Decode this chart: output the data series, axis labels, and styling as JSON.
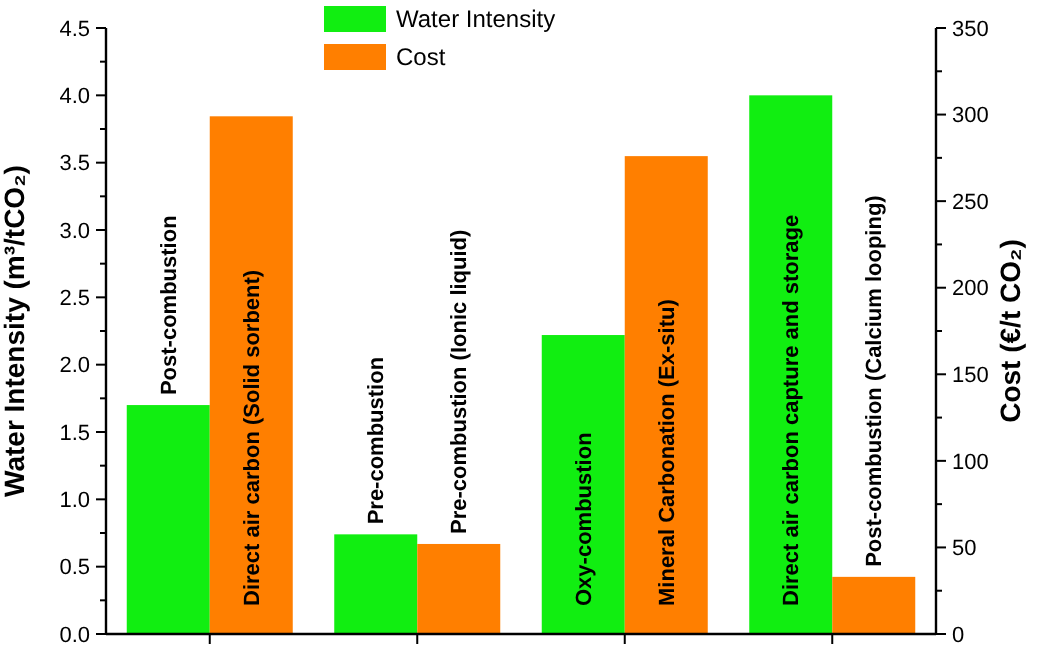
{
  "chart_data": {
    "type": "bar",
    "xlabel": null,
    "ylabel": "Water Intensity (m³/tCO₂)",
    "y2label": "Cost (€/t CO₂)",
    "categories": [
      null,
      null,
      null,
      null
    ],
    "series": [
      {
        "name": "Water Intensity",
        "color": "#11ee11",
        "values": [
          1.7,
          0.74,
          2.22,
          4.0
        ],
        "value_labels": [
          "Post-combustion",
          "Pre-combustion",
          "Oxy-combustion",
          "Direct air carbon capture and storage"
        ]
      },
      {
        "name": "Cost",
        "color": "#ff7f00",
        "values": [
          299,
          52,
          276,
          33
        ],
        "axis": "y2",
        "value_labels": [
          "Direct air carbon (Solid sorbent)",
          "Pre-combustion (Ionic liquid)",
          "Mineral Carbonation (Ex-situ)",
          "Post-combustion (Calcium looping)"
        ]
      }
    ],
    "ylim": [
      0,
      4.5
    ],
    "yticks": [
      {
        "value": 0,
        "label": "0.0"
      },
      {
        "value": 0.25,
        "label": null
      },
      {
        "value": 0.5,
        "label": "0.5"
      },
      {
        "value": 0.75,
        "label": null
      },
      {
        "value": 1,
        "label": "1.0"
      },
      {
        "value": 1.25,
        "label": null
      },
      {
        "value": 1.5,
        "label": "1.5"
      },
      {
        "value": 1.75,
        "label": null
      },
      {
        "value": 2,
        "label": "2.0"
      },
      {
        "value": 2.25,
        "label": null
      },
      {
        "value": 2.5,
        "label": "2.5"
      },
      {
        "value": 2.75,
        "label": null
      },
      {
        "value": 3,
        "label": "3.0"
      },
      {
        "value": 3.25,
        "label": null
      },
      {
        "value": 3.5,
        "label": "3.5"
      },
      {
        "value": 3.75,
        "label": null
      },
      {
        "value": 4,
        "label": "4.0"
      },
      {
        "value": 4.25,
        "label": null
      },
      {
        "value": 4.5,
        "label": "4.5"
      }
    ],
    "y2lim": [
      0,
      350
    ],
    "y2ticks": [
      0,
      {
        "value": 25,
        "label": null
      },
      50,
      {
        "value": 75,
        "label": null
      },
      100,
      {
        "value": 125,
        "label": null
      },
      150,
      {
        "value": 175,
        "label": null
      },
      200,
      {
        "value": 225,
        "label": null
      },
      250,
      {
        "value": 275,
        "label": null
      },
      300,
      {
        "value": 325,
        "label": null
      },
      350
    ],
    "legend": "top",
    "grid": false
  }
}
